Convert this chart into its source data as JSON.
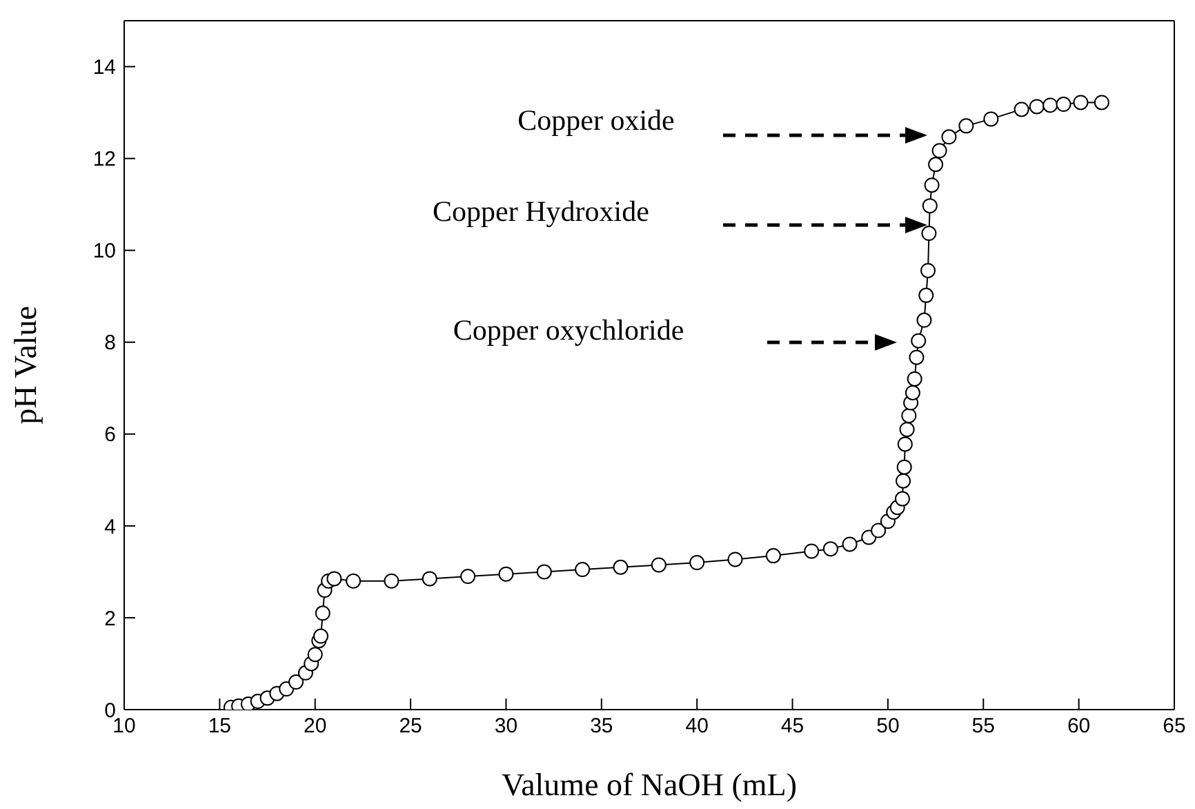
{
  "chart_data": {
    "type": "line",
    "xlabel": "Valume of  NaOH (mL)",
    "ylabel": "pH Value",
    "xlim": [
      10,
      65
    ],
    "xticks": [
      10,
      15,
      20,
      25,
      30,
      35,
      40,
      45,
      50,
      55,
      60,
      65
    ],
    "ylim": [
      0,
      15
    ],
    "yticks": [
      0,
      2,
      4,
      6,
      8,
      10,
      12,
      14
    ],
    "marker": "circle",
    "color": "#000000",
    "x": [
      15.6,
      16,
      16.5,
      17,
      17.5,
      18,
      18.5,
      19,
      19.5,
      19.8,
      20,
      20.2,
      20.3,
      20.4,
      20.5,
      20.7,
      21,
      22,
      24,
      26,
      28,
      30,
      32,
      34,
      36,
      38,
      40,
      42,
      44,
      46,
      47,
      48,
      49,
      49.5,
      50,
      50.3,
      50.5,
      50.76,
      50.8,
      50.86,
      50.9,
      51.0,
      51.1,
      51.2,
      51.3,
      51.4,
      51.5,
      51.6,
      51.9,
      52.0,
      52.1,
      52.15,
      52.2,
      52.3,
      52.5,
      52.7,
      53.2,
      54.1,
      55.4,
      57.0,
      57.8,
      58.5,
      59.2,
      60.1,
      61.2
    ],
    "values": [
      0.05,
      0.08,
      0.12,
      0.18,
      0.25,
      0.35,
      0.45,
      0.6,
      0.8,
      1.0,
      1.2,
      1.5,
      1.6,
      2.1,
      2.6,
      2.8,
      2.85,
      2.8,
      2.8,
      2.85,
      2.9,
      2.95,
      3.0,
      3.05,
      3.1,
      3.15,
      3.2,
      3.27,
      3.35,
      3.45,
      3.5,
      3.6,
      3.75,
      3.9,
      4.1,
      4.3,
      4.4,
      4.59,
      4.98,
      5.28,
      5.78,
      6.1,
      6.4,
      6.68,
      6.9,
      7.2,
      7.67,
      8.03,
      8.48,
      9.02,
      9.56,
      10.37,
      10.97,
      11.42,
      11.87,
      12.17,
      12.47,
      12.71,
      12.86,
      13.07,
      13.13,
      13.16,
      13.18,
      13.22,
      13.22
    ],
    "annotations": [
      "Copper oxide",
      "Copper Hydroxide",
      "Copper oxychloride"
    ]
  }
}
